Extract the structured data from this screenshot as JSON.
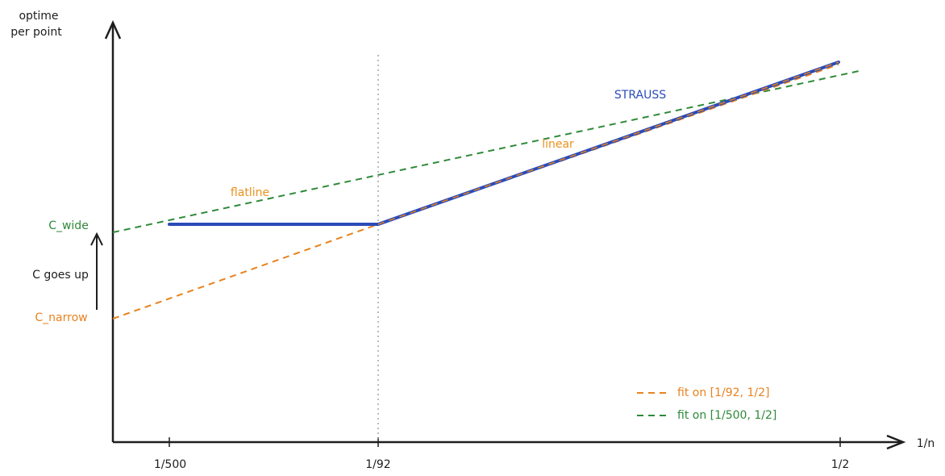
{
  "y_axis": {
    "label_lines": [
      "optime",
      "per point"
    ],
    "labels": {
      "wide": "C_wide",
      "narrow": "C_narrow",
      "shift": "C goes up"
    }
  },
  "x_axis": {
    "label": "1/n",
    "ticks": [
      "1/500",
      "1/92",
      "1/2"
    ]
  },
  "annotations": {
    "strauss": "STRAUSS",
    "linear": "linear",
    "flatline": "flatline"
  },
  "legend": [
    "fit on [1/92, 1/2]",
    "fit on [1/500, 1/2]"
  ]
}
